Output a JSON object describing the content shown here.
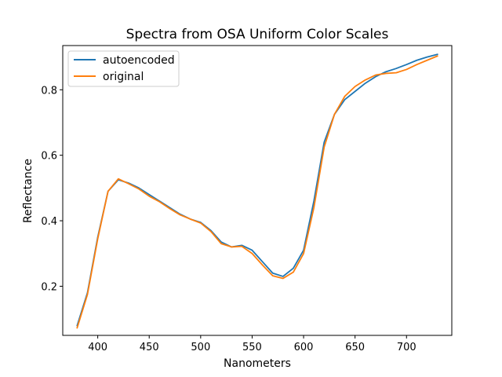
{
  "chart_data": {
    "type": "line",
    "title": "Spectra from OSA Uniform Color Scales",
    "xlabel": "Nanometers",
    "ylabel": "Reflectance",
    "xlim": [
      366,
      744
    ],
    "ylim": [
      0.05,
      0.935
    ],
    "xticks": [
      400,
      450,
      500,
      550,
      600,
      650,
      700
    ],
    "yticks": [
      0.2,
      0.4,
      0.6,
      0.8
    ],
    "xtick_labels": [
      "400",
      "450",
      "500",
      "550",
      "600",
      "650",
      "700"
    ],
    "ytick_labels": [
      "0.2",
      "0.4",
      "0.6",
      "0.8"
    ],
    "grid": false,
    "legend_position": "top-left",
    "x": [
      380,
      390,
      400,
      410,
      420,
      430,
      440,
      450,
      460,
      470,
      480,
      490,
      500,
      510,
      520,
      530,
      540,
      550,
      560,
      570,
      580,
      590,
      600,
      610,
      620,
      630,
      640,
      650,
      660,
      670,
      680,
      690,
      700,
      710,
      720,
      730
    ],
    "series": [
      {
        "name": "autoencoded",
        "color": "#1f77b4",
        "values": [
          0.08,
          0.18,
          0.35,
          0.49,
          0.525,
          0.515,
          0.5,
          0.48,
          0.46,
          0.44,
          0.42,
          0.405,
          0.395,
          0.37,
          0.335,
          0.32,
          0.325,
          0.31,
          0.275,
          0.24,
          0.23,
          0.255,
          0.31,
          0.46,
          0.64,
          0.725,
          0.77,
          0.795,
          0.82,
          0.84,
          0.855,
          0.865,
          0.877,
          0.89,
          0.9,
          0.908
        ]
      },
      {
        "name": "original",
        "color": "#ff7f0e",
        "values": [
          0.073,
          0.175,
          0.345,
          0.49,
          0.528,
          0.513,
          0.497,
          0.475,
          0.458,
          0.437,
          0.418,
          0.405,
          0.393,
          0.367,
          0.33,
          0.32,
          0.322,
          0.3,
          0.265,
          0.232,
          0.224,
          0.243,
          0.3,
          0.44,
          0.625,
          0.725,
          0.78,
          0.81,
          0.83,
          0.845,
          0.85,
          0.852,
          0.862,
          0.877,
          0.89,
          0.903
        ]
      }
    ]
  }
}
